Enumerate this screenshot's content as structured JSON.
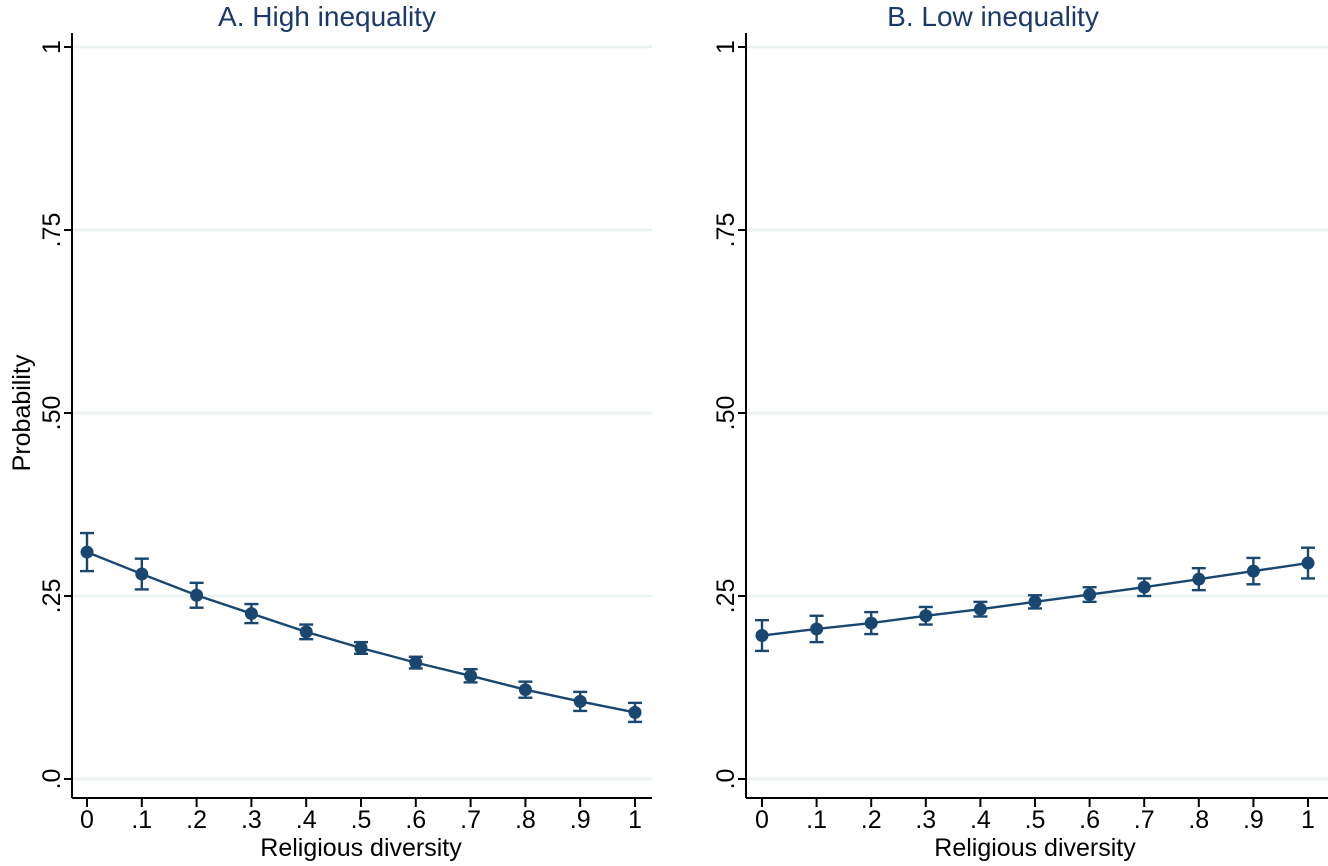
{
  "figure": {
    "background": "#ffffff",
    "description": "Two-panel predicted probability plot with 95% confidence intervals"
  },
  "style": {
    "series_color": "#1a476f",
    "title_color": "#1b3a6b",
    "grid_color": "#e9f1f2",
    "axis_color": "#000000",
    "text_color": "#000000"
  },
  "chart_data": [
    {
      "type": "line",
      "panel_label": "A",
      "title": "A. High inequality",
      "xlabel": "Religious diversity",
      "ylabel": "Probability",
      "x": [
        0,
        0.1,
        0.2,
        0.3,
        0.4,
        0.5,
        0.6,
        0.7,
        0.8,
        0.9,
        1
      ],
      "x_tick_labels": [
        "0",
        ".1",
        ".2",
        ".3",
        ".4",
        ".5",
        ".6",
        ".7",
        ".8",
        ".9",
        "1"
      ],
      "y_ticks": [
        0,
        0.25,
        0.5,
        0.75,
        1
      ],
      "y_tick_labels": [
        ".0",
        ".25",
        ".50",
        ".75",
        "1"
      ],
      "xlim": [
        0,
        1
      ],
      "ylim": [
        0,
        1
      ],
      "grid": true,
      "legend": "none",
      "series": [
        {
          "name": "Predicted probability",
          "marker": "circle",
          "error_bars": "95% CI",
          "values": [
            0.31,
            0.28,
            0.251,
            0.226,
            0.201,
            0.179,
            0.159,
            0.141,
            0.122,
            0.106,
            0.091
          ],
          "ci_low": [
            0.284,
            0.259,
            0.234,
            0.213,
            0.191,
            0.171,
            0.151,
            0.132,
            0.111,
            0.093,
            0.078
          ],
          "ci_high": [
            0.336,
            0.301,
            0.268,
            0.239,
            0.211,
            0.187,
            0.167,
            0.15,
            0.133,
            0.119,
            0.104
          ]
        }
      ]
    },
    {
      "type": "line",
      "panel_label": "B",
      "title": "B. Low inequality",
      "xlabel": "Religious diversity",
      "ylabel": "",
      "x": [
        0,
        0.1,
        0.2,
        0.3,
        0.4,
        0.5,
        0.6,
        0.7,
        0.8,
        0.9,
        1
      ],
      "x_tick_labels": [
        "0",
        ".1",
        ".2",
        ".3",
        ".4",
        ".5",
        ".6",
        ".7",
        ".8",
        ".9",
        "1"
      ],
      "y_ticks": [
        0,
        0.25,
        0.5,
        0.75,
        1
      ],
      "y_tick_labels": [
        ".0",
        ".25",
        ".50",
        ".75",
        "1"
      ],
      "xlim": [
        0,
        1
      ],
      "ylim": [
        0,
        1
      ],
      "grid": true,
      "legend": "none",
      "series": [
        {
          "name": "Predicted probability",
          "marker": "circle",
          "error_bars": "95% CI",
          "values": [
            0.196,
            0.205,
            0.213,
            0.223,
            0.232,
            0.242,
            0.252,
            0.262,
            0.273,
            0.284,
            0.295
          ],
          "ci_low": [
            0.175,
            0.187,
            0.198,
            0.211,
            0.222,
            0.233,
            0.242,
            0.25,
            0.258,
            0.266,
            0.274
          ],
          "ci_high": [
            0.217,
            0.223,
            0.228,
            0.235,
            0.242,
            0.251,
            0.262,
            0.274,
            0.288,
            0.302,
            0.316
          ]
        }
      ]
    }
  ]
}
